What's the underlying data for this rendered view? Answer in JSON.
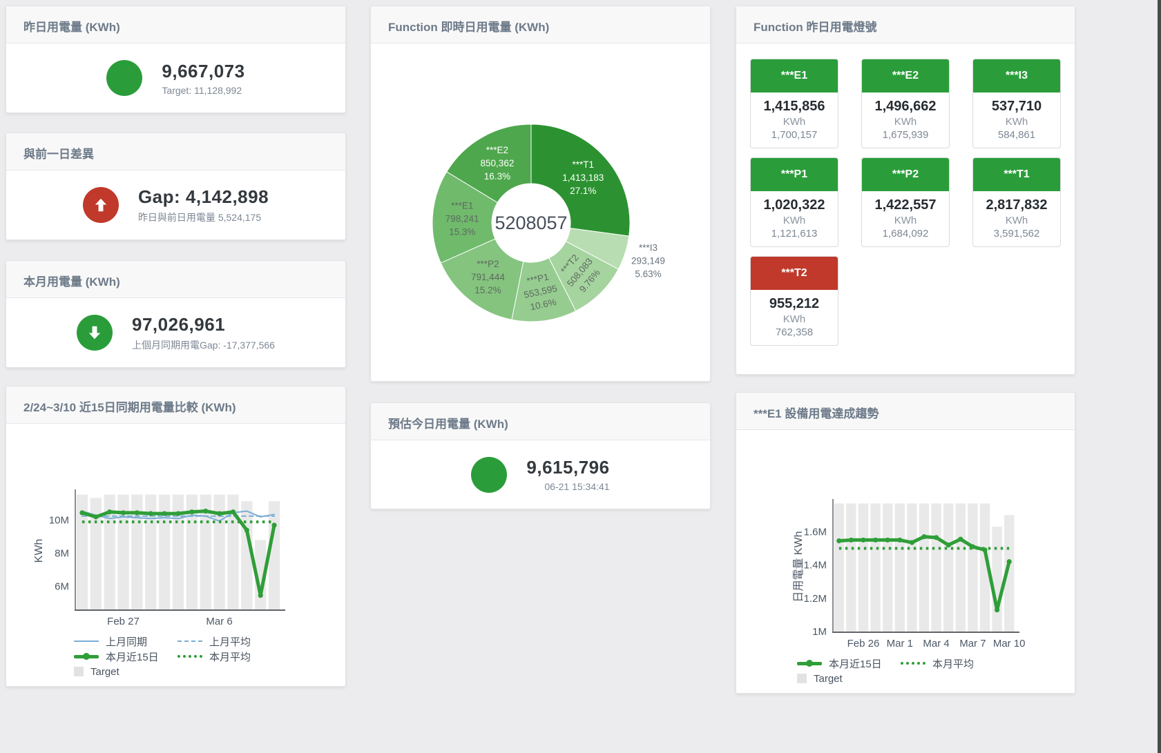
{
  "colors": {
    "green": "#2a9d3a",
    "red": "#c0392b",
    "blue_line": "#7aaed6",
    "green_line": "#2f9e38",
    "target_bar": "#e9e9e9",
    "axis": "#6d7278",
    "tick_text": "#4c5866"
  },
  "cards": {
    "yesterday": {
      "title": "昨日用電量 (KWh)",
      "value": "9,667,073",
      "subtitle": "Target: 11,128,992"
    },
    "day_gap": {
      "title": "與前一日差異",
      "value": "Gap: 4,142,898",
      "subtitle": "昨日與前日用電量 5,524,175"
    },
    "month": {
      "title": "本月用電量 (KWh)",
      "value": "97,026,961",
      "subtitle": "上個月同期用電Gap: -17,377,566"
    },
    "estimate": {
      "title": "預估今日用電量 (KWh)",
      "value": "9,615,796",
      "subtitle": "06-21 15:34:41"
    }
  },
  "lights": {
    "title": "Function 昨日用電燈號",
    "tiles": [
      {
        "name": "***E1",
        "value": "1,415,856",
        "unit": "KWh",
        "target": "1,700,157",
        "status": "green"
      },
      {
        "name": "***E2",
        "value": "1,496,662",
        "unit": "KWh",
        "target": "1,675,939",
        "status": "green"
      },
      {
        "name": "***I3",
        "value": "537,710",
        "unit": "KWh",
        "target": "584,861",
        "status": "green"
      },
      {
        "name": "***P1",
        "value": "1,020,322",
        "unit": "KWh",
        "target": "1,121,613",
        "status": "green"
      },
      {
        "name": "***P2",
        "value": "1,422,557",
        "unit": "KWh",
        "target": "1,684,092",
        "status": "green"
      },
      {
        "name": "***T1",
        "value": "2,817,832",
        "unit": "KWh",
        "target": "3,591,562",
        "status": "green"
      },
      {
        "name": "***T2",
        "value": "955,212",
        "unit": "KWh",
        "target": "762,358",
        "status": "red"
      }
    ]
  },
  "chart_data": [
    {
      "id": "donut",
      "type": "pie",
      "title": "Function 即時日用電量 (KWh)",
      "center_total": "5208057",
      "slices": [
        {
          "name": "***T1",
          "value": 1413183,
          "display": "1,413,183",
          "pct": "27.1%",
          "share": 27.1,
          "color": "#2c9231",
          "label_color": "#ffffff"
        },
        {
          "name": "***I3",
          "value": 293149,
          "display": "293,149",
          "pct": "5.63%",
          "share": 5.63,
          "color": "#b9ddb2",
          "label_color": "#68737d",
          "outside": true
        },
        {
          "name": "***T2",
          "value": 508083,
          "display": "508,083",
          "pct": "9.76%",
          "share": 9.76,
          "color": "#a5d49f",
          "label_color": "#5d6a5e"
        },
        {
          "name": "***P1",
          "value": 553595,
          "display": "553,595",
          "pct": "10.6%",
          "share": 10.6,
          "color": "#96cc90",
          "label_color": "#5d6a5e"
        },
        {
          "name": "***P2",
          "value": 791444,
          "display": "791,444",
          "pct": "15.2%",
          "share": 15.2,
          "color": "#84c47f",
          "label_color": "#5d6a5e"
        },
        {
          "name": "***E1",
          "value": 798241,
          "display": "798,241",
          "pct": "15.3%",
          "share": 15.3,
          "color": "#70ba6c",
          "label_color": "#5d6a5e"
        },
        {
          "name": "***E2",
          "value": 850362,
          "display": "850,362",
          "pct": "16.3%",
          "share": 16.3,
          "color": "#4ea74c",
          "label_color": "#ffffff"
        }
      ]
    },
    {
      "id": "compare15",
      "type": "line",
      "title": "2/24~3/10 近15日同期用電量比較 (KWh)",
      "ylabel": "KWh",
      "ylim": [
        4.6,
        11.7
      ],
      "yticks": [
        {
          "v": 6,
          "label": "6M"
        },
        {
          "v": 8,
          "label": "8M"
        },
        {
          "v": 10,
          "label": "10M"
        }
      ],
      "xticks": [
        {
          "i": 3,
          "label": "Feb 27"
        },
        {
          "i": 10,
          "label": "Mar 6"
        }
      ],
      "target_bars": [
        11.55,
        11.35,
        11.55,
        11.55,
        11.55,
        11.55,
        11.55,
        11.55,
        11.55,
        11.55,
        11.55,
        11.55,
        11.15,
        8.8,
        11.15
      ],
      "series": [
        {
          "name": "上月同期",
          "swatch": "blue-solid",
          "values": [
            10.55,
            10.3,
            10.1,
            10.2,
            10.15,
            10.1,
            10.15,
            10.1,
            10.3,
            10.25,
            9.95,
            10.45,
            10.55,
            10.2,
            10.35
          ]
        },
        {
          "name": "上月平均",
          "swatch": "blue-dashed",
          "constant": 10.25
        },
        {
          "name": "本月近15日",
          "swatch": "green-thick",
          "values": [
            10.45,
            10.2,
            10.5,
            10.45,
            10.45,
            10.4,
            10.4,
            10.4,
            10.5,
            10.55,
            10.4,
            10.5,
            9.4,
            5.45,
            9.7
          ]
        },
        {
          "name": "本月平均",
          "swatch": "green-dotted",
          "constant": 9.9
        }
      ],
      "legend_extra": {
        "name": "Target",
        "swatch": "gray-square"
      }
    },
    {
      "id": "e1trend",
      "type": "line",
      "title": "***E1 設備用電達成趨勢",
      "ylabel": "日用電量 KWh",
      "ylim": [
        1.0,
        1.78
      ],
      "yticks": [
        {
          "v": 1,
          "label": "1M"
        },
        {
          "v": 1.2,
          "label": "1.2M"
        },
        {
          "v": 1.4,
          "label": "1.4M"
        },
        {
          "v": 1.6,
          "label": "1.6M"
        }
      ],
      "xticks": [
        {
          "i": 2,
          "label": "Feb 26"
        },
        {
          "i": 5,
          "label": "Mar 1"
        },
        {
          "i": 8,
          "label": "Mar 4"
        },
        {
          "i": 11,
          "label": "Mar 7"
        },
        {
          "i": 14,
          "label": "Mar 10"
        }
      ],
      "target_bars": [
        1.77,
        1.77,
        1.77,
        1.77,
        1.77,
        1.77,
        1.77,
        1.77,
        1.77,
        1.77,
        1.77,
        1.77,
        1.77,
        1.63,
        1.7
      ],
      "series": [
        {
          "name": "本月近15日",
          "swatch": "green-thick",
          "values": [
            1.545,
            1.55,
            1.55,
            1.55,
            1.55,
            1.55,
            1.535,
            1.57,
            1.565,
            1.52,
            1.555,
            1.51,
            1.49,
            1.13,
            1.42
          ]
        },
        {
          "name": "本月平均",
          "swatch": "green-dotted",
          "constant": 1.5
        }
      ],
      "legend_extra": {
        "name": "Target",
        "swatch": "gray-square"
      }
    }
  ]
}
